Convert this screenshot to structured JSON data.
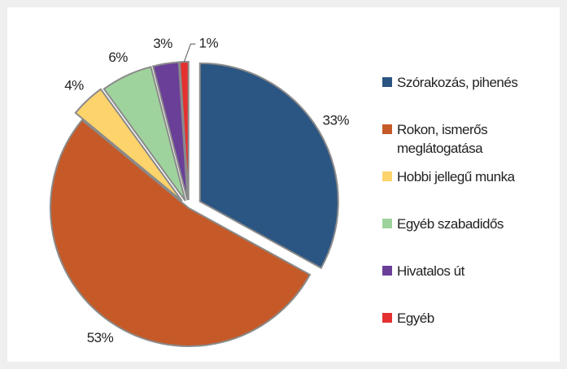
{
  "chart_data": {
    "type": "pie",
    "categories": [
      "Szórakozás, pihenés",
      "Rokon, ismerős meglátogatása",
      "Hobbi jellegű munka",
      "Egyéb szabadidős",
      "Hivatalos út",
      "Egyéb"
    ],
    "values": [
      33,
      53,
      4,
      6,
      3,
      1
    ],
    "value_labels": [
      "33%",
      "53%",
      "4%",
      "6%",
      "3%",
      "1%"
    ],
    "colors": [
      "#2b5582",
      "#c55a28",
      "#fdd36b",
      "#9fd39d",
      "#6a3f98",
      "#e53030"
    ],
    "legend": "right"
  }
}
